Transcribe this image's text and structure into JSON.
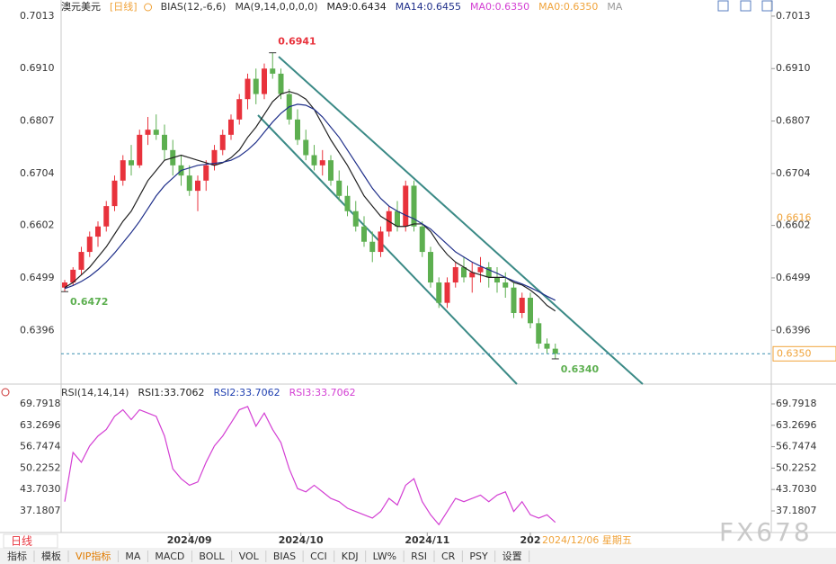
{
  "chart_data": [
    {
      "type": "candlestick",
      "title": "澳元美元",
      "subtitle": "[日线]",
      "indicators": [
        "BIAS(12,-6,6)",
        "MA(9,14,0,0,0,0)"
      ],
      "open": [
        0.648,
        0.649,
        0.6515,
        0.655,
        0.658,
        0.66,
        0.664,
        0.669,
        0.673,
        0.672,
        0.678,
        0.679,
        0.678,
        0.675,
        0.672,
        0.67,
        0.667,
        0.669,
        0.672,
        0.675,
        0.678,
        0.681,
        0.685,
        0.689,
        0.686,
        0.691,
        0.69,
        0.686,
        0.681,
        0.677,
        0.674,
        0.672,
        0.673,
        0.669,
        0.666,
        0.663,
        0.66,
        0.657,
        0.655,
        0.659,
        0.663,
        0.66,
        0.668,
        0.66,
        0.655,
        0.649,
        0.645,
        0.649,
        0.652,
        0.65,
        0.651,
        0.652,
        0.65,
        0.649,
        0.648,
        0.643,
        0.646,
        0.641,
        0.637,
        0.636
      ],
      "high": [
        0.6495,
        0.652,
        0.656,
        0.659,
        0.661,
        0.665,
        0.67,
        0.674,
        0.676,
        0.679,
        0.6815,
        0.682,
        0.68,
        0.677,
        0.674,
        0.672,
        0.67,
        0.673,
        0.676,
        0.679,
        0.682,
        0.686,
        0.69,
        0.691,
        0.692,
        0.6941,
        0.691,
        0.687,
        0.683,
        0.679,
        0.676,
        0.675,
        0.674,
        0.671,
        0.668,
        0.665,
        0.662,
        0.659,
        0.66,
        0.664,
        0.665,
        0.669,
        0.669,
        0.661,
        0.656,
        0.65,
        0.65,
        0.653,
        0.654,
        0.653,
        0.654,
        0.653,
        0.652,
        0.651,
        0.649,
        0.647,
        0.647,
        0.642,
        0.638,
        0.637
      ],
      "low": [
        0.6472,
        0.6485,
        0.6505,
        0.654,
        0.656,
        0.659,
        0.663,
        0.668,
        0.67,
        0.6715,
        0.676,
        0.677,
        0.673,
        0.67,
        0.668,
        0.666,
        0.663,
        0.667,
        0.671,
        0.674,
        0.677,
        0.68,
        0.683,
        0.684,
        0.685,
        0.689,
        0.685,
        0.68,
        0.676,
        0.673,
        0.671,
        0.67,
        0.668,
        0.665,
        0.662,
        0.659,
        0.656,
        0.653,
        0.654,
        0.658,
        0.659,
        0.659,
        0.659,
        0.654,
        0.648,
        0.644,
        0.644,
        0.648,
        0.649,
        0.647,
        0.649,
        0.648,
        0.647,
        0.646,
        0.642,
        0.642,
        0.64,
        0.636,
        0.635,
        0.634
      ],
      "close": [
        0.649,
        0.6515,
        0.655,
        0.658,
        0.66,
        0.664,
        0.669,
        0.673,
        0.672,
        0.678,
        0.679,
        0.678,
        0.675,
        0.672,
        0.67,
        0.667,
        0.669,
        0.672,
        0.675,
        0.678,
        0.681,
        0.685,
        0.689,
        0.686,
        0.691,
        0.69,
        0.686,
        0.681,
        0.677,
        0.674,
        0.672,
        0.673,
        0.669,
        0.666,
        0.663,
        0.66,
        0.657,
        0.655,
        0.659,
        0.663,
        0.66,
        0.668,
        0.66,
        0.655,
        0.649,
        0.645,
        0.649,
        0.652,
        0.65,
        0.651,
        0.652,
        0.65,
        0.649,
        0.648,
        0.643,
        0.646,
        0.641,
        0.637,
        0.636,
        0.635
      ],
      "up_color": "#e8323c",
      "down_color": "#5daf50",
      "series": [
        {
          "name": "MA9:0.6434",
          "color": "#222222",
          "values": [
            0.648,
            0.649,
            0.6505,
            0.652,
            0.654,
            0.656,
            0.6585,
            0.661,
            0.663,
            0.666,
            0.669,
            0.671,
            0.673,
            0.6735,
            0.674,
            0.6735,
            0.673,
            0.6725,
            0.672,
            0.6725,
            0.6735,
            0.675,
            0.6775,
            0.6795,
            0.682,
            0.6845,
            0.686,
            0.6865,
            0.686,
            0.685,
            0.683,
            0.68,
            0.677,
            0.6745,
            0.672,
            0.669,
            0.666,
            0.664,
            0.662,
            0.661,
            0.66,
            0.66,
            0.6605,
            0.6605,
            0.659,
            0.6565,
            0.6545,
            0.653,
            0.652,
            0.651,
            0.6505,
            0.65,
            0.65,
            0.65,
            0.649,
            0.6485,
            0.6475,
            0.6462,
            0.6445,
            0.6434
          ]
        },
        {
          "name": "MA14:0.6455",
          "color": "#1f2f8a",
          "values": [
            0.6478,
            0.6484,
            0.6492,
            0.6502,
            0.6515,
            0.653,
            0.6548,
            0.6568,
            0.6588,
            0.661,
            0.6635,
            0.666,
            0.668,
            0.6695,
            0.671,
            0.6715,
            0.672,
            0.6722,
            0.6724,
            0.6726,
            0.673,
            0.6738,
            0.675,
            0.6765,
            0.6785,
            0.6805,
            0.6822,
            0.6835,
            0.684,
            0.6838,
            0.683,
            0.6815,
            0.6795,
            0.6775,
            0.675,
            0.6725,
            0.67,
            0.6675,
            0.6655,
            0.664,
            0.663,
            0.6622,
            0.6615,
            0.6605,
            0.6595,
            0.658,
            0.6565,
            0.655,
            0.654,
            0.653,
            0.6522,
            0.6515,
            0.6508,
            0.65,
            0.6493,
            0.6487,
            0.648,
            0.6472,
            0.6463,
            0.6455
          ]
        }
      ],
      "legend_extra": [
        {
          "name": "MA0:0.6350",
          "color": "#d33fd3"
        },
        {
          "name": "MA0:0.6350",
          "color": "#f0a33a"
        },
        {
          "name": "MA",
          "color": "#999999"
        }
      ],
      "ylim": [
        0.6294,
        0.7027
      ],
      "yticks": [
        0.7013,
        {
          "value": 0.691,
          "label": "0.6910"
        },
        0.6807,
        0.6704,
        0.6602,
        0.6499,
        0.6396
      ],
      "annotations": [
        {
          "x": 25,
          "value": 0.6941,
          "label": "0.6941",
          "color": "#e8323c"
        },
        {
          "x": 0,
          "value": 0.6472,
          "label": "0.6472",
          "color": "#5daf50"
        },
        {
          "x": 59,
          "value": 0.634,
          "label": "0.6340",
          "color": "#5daf50"
        }
      ],
      "price_markers": [
        {
          "value": 0.6616,
          "label": "0.6616",
          "color": "#f0a33a",
          "boxed": false,
          "dashed": false
        },
        {
          "value": 0.635,
          "label": "0.6350",
          "color": "#f0a33a",
          "boxed": true,
          "dashed": true
        }
      ]
    },
    {
      "type": "line",
      "title": "RSI(14,14,14)",
      "legend_extra": [
        {
          "name": "RSI1:33.7062",
          "color": "#222222"
        },
        {
          "name": "RSI2:33.7062",
          "color": "#1f3fb0"
        }
      ],
      "series": [
        {
          "name": "RSI3:33.7062",
          "color": "#d33fd3",
          "values": [
            40,
            55,
            52,
            57,
            60,
            62,
            66,
            68,
            65,
            68,
            67,
            66,
            60,
            50,
            47,
            45,
            46,
            52,
            57,
            60,
            64,
            68,
            69,
            63,
            67,
            62,
            58,
            50,
            44,
            43,
            45,
            43,
            41,
            40,
            38,
            37,
            36,
            35,
            37,
            41,
            39,
            45,
            47,
            40,
            36,
            33,
            37,
            41,
            40,
            41,
            42,
            40,
            42,
            43,
            37,
            40,
            36,
            35,
            36,
            33.7062
          ]
        }
      ],
      "ylim": [
        31.15,
        75.0
      ],
      "yticks": [
        69.7918,
        63.2696,
        56.7474,
        50.2252,
        {
          "value": 43.703,
          "label": "43.7030"
        },
        37.1807
      ],
      "xticks": [
        {
          "value": 15,
          "label": "2024/09"
        },
        {
          "value": 28.4,
          "label": "2024/10"
        },
        {
          "value": 43.6,
          "label": "2024/11"
        },
        {
          "value": 56,
          "label": "202"
        }
      ],
      "cursor_label": "2024/12/06 星期五"
    }
  ],
  "toolbar": {
    "period": "日线",
    "tabs": [
      "指标",
      "模板",
      "VIP指标",
      "MA",
      "MACD",
      "BOLL",
      "VOL",
      "BIAS",
      "CCI",
      "KDJ",
      "LW%",
      "RSI",
      "CR",
      "PSY",
      "设置"
    ]
  },
  "watermark": "FX678"
}
